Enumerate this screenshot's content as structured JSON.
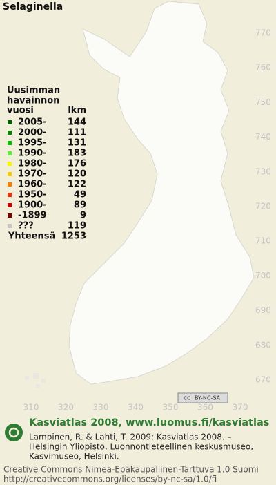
{
  "title": "Selaginella",
  "legend": {
    "heading": [
      "Uusimman",
      "havainnon"
    ],
    "columns": [
      "vuosi",
      "lkm"
    ],
    "items": [
      {
        "label": "2005-",
        "count": 144,
        "color": "#006000"
      },
      {
        "label": "2000-",
        "count": 111,
        "color": "#008a00"
      },
      {
        "label": "1995-",
        "count": 131,
        "color": "#00c000"
      },
      {
        "label": "1990-",
        "count": 183,
        "color": "#5ef03a"
      },
      {
        "label": "1980-",
        "count": 176,
        "color": "#f8f800"
      },
      {
        "label": "1970-",
        "count": 120,
        "color": "#f8c800"
      },
      {
        "label": "1960-",
        "count": 122,
        "color": "#f88000"
      },
      {
        "label": "1950-",
        "count": 49,
        "color": "#f03000"
      },
      {
        "label": "1900-",
        "count": 89,
        "color": "#c80000"
      },
      {
        "label": "-1899",
        "count": 9,
        "color": "#800000"
      },
      {
        "label": "???",
        "count": 119,
        "color": "#c8c8c8"
      }
    ],
    "total_label": "Yhteensä",
    "total": 1253
  },
  "axes": {
    "y_labels": [
      770,
      760,
      750,
      740,
      730,
      720,
      710,
      700,
      690,
      680,
      670
    ],
    "x_labels": [
      310,
      320,
      330,
      340,
      350,
      360,
      370
    ]
  },
  "badge": {
    "cc": "cc",
    "license": "BY-NC-SA"
  },
  "footer": {
    "brand": "Kasviatlas 2008, www.luomus.fi/kasviatlas",
    "citation": [
      "Lampinen, R. & Lahti, T. 2009: Kasviatlas 2008. –",
      "Helsingin Yliopisto, Luonnontieteellinen keskusmuseo,",
      "Kasvimuseo, Helsinki."
    ],
    "license": [
      "Creative Commons Nimeä-Epäkaupallinen-Tarttuva 1.0 Suomi",
      "http://creativecommons.org/licenses/by-nc-sa/1.0/fi"
    ]
  }
}
